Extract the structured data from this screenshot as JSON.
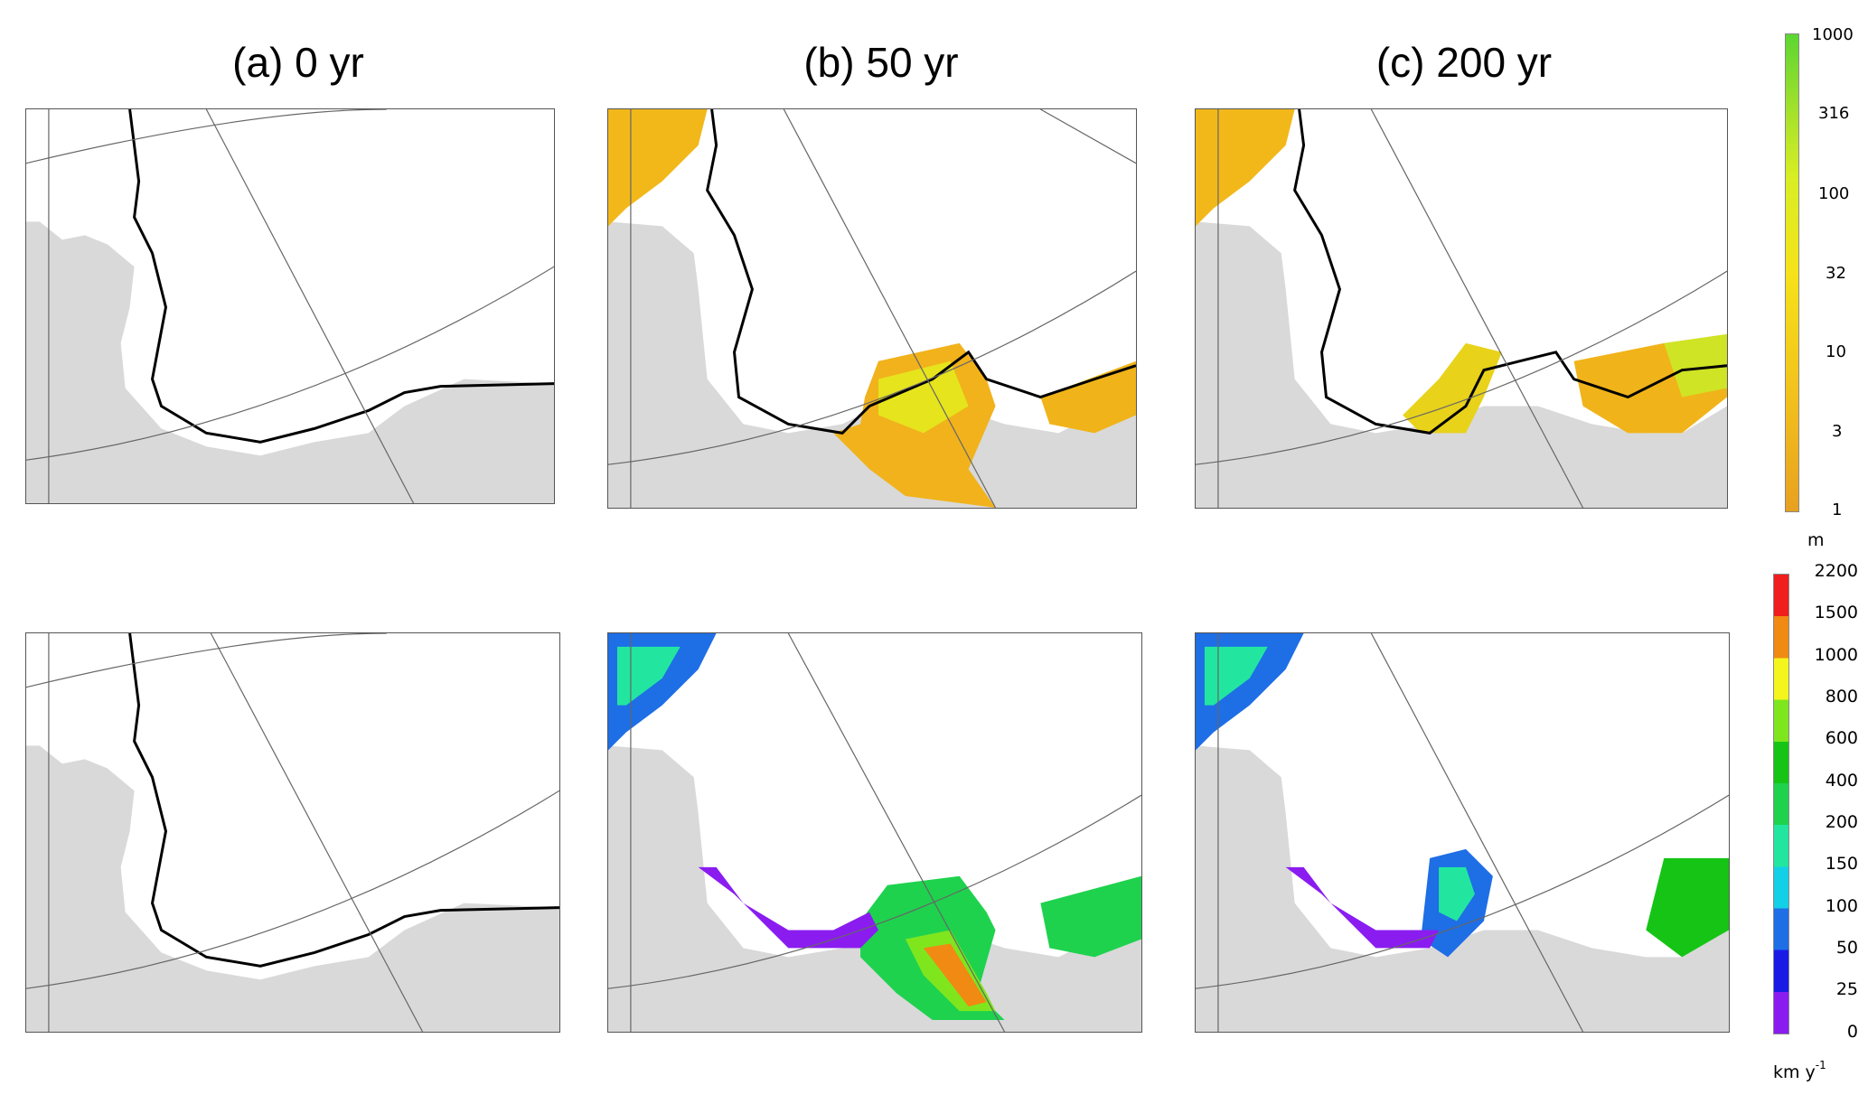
{
  "columns": [
    {
      "label": "(a)  0 yr"
    },
    {
      "label": "(b)  50 yr"
    },
    {
      "label": "(c)  200 yr"
    }
  ],
  "colorbar_top": {
    "ticks": [
      "1000",
      "316",
      "100",
      "32",
      "10",
      "3",
      "1"
    ],
    "unit": "m",
    "colors": [
      "#e8a020",
      "#f2c21c",
      "#f6e21a",
      "#d8ee24",
      "#9fe02c",
      "#5cd632"
    ],
    "scale": "log"
  },
  "colorbar_bottom": {
    "ticks": [
      "2200",
      "1500",
      "1000",
      "800",
      "600",
      "400",
      "200",
      "150",
      "100",
      "50",
      "25",
      "0"
    ],
    "unit_main": "km y",
    "unit_sup": "-1",
    "colors": [
      "#8a1cf0",
      "#1a1ae6",
      "#1e6ee6",
      "#12d0e6",
      "#22e6a0",
      "#1ed24e",
      "#16c416",
      "#7fe61e",
      "#f5f51e",
      "#f08a12",
      "#f01e1e"
    ]
  },
  "colors": {
    "land": "#d9d9d9",
    "ocean": "#ffffff",
    "coast": "#000000",
    "grid": "#555555"
  }
}
